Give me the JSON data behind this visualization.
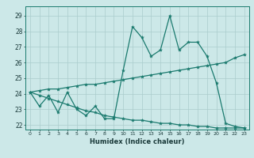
{
  "xlabel": "Humidex (Indice chaleur)",
  "bg_color": "#cce8e8",
  "line_color": "#1a7a6e",
  "grid_color": "#aacccc",
  "xlim": [
    -0.5,
    23.5
  ],
  "ylim": [
    21.7,
    29.6
  ],
  "xticks": [
    0,
    1,
    2,
    3,
    4,
    5,
    6,
    7,
    8,
    9,
    10,
    11,
    12,
    13,
    14,
    15,
    16,
    17,
    18,
    19,
    20,
    21,
    22,
    23
  ],
  "yticks": [
    22,
    23,
    24,
    25,
    26,
    27,
    28,
    29
  ],
  "series": [
    [
      24.1,
      23.2,
      23.9,
      22.8,
      24.1,
      23.0,
      22.6,
      23.2,
      22.4,
      22.4,
      25.5,
      28.3,
      27.6,
      26.4,
      26.8,
      29.0,
      26.8,
      27.3,
      27.3,
      26.4,
      24.7,
      22.1,
      21.9,
      21.8
    ],
    [
      24.1,
      24.2,
      24.3,
      24.3,
      24.4,
      24.5,
      24.6,
      24.6,
      24.7,
      24.8,
      24.9,
      25.0,
      25.1,
      25.2,
      25.3,
      25.4,
      25.5,
      25.6,
      25.7,
      25.8,
      25.9,
      26.0,
      26.3,
      26.5
    ],
    [
      24.1,
      23.9,
      23.7,
      23.5,
      23.3,
      23.1,
      22.9,
      22.8,
      22.6,
      22.5,
      22.4,
      22.3,
      22.3,
      22.2,
      22.1,
      22.1,
      22.0,
      22.0,
      21.9,
      21.9,
      21.8,
      21.8,
      21.8,
      21.8
    ]
  ]
}
